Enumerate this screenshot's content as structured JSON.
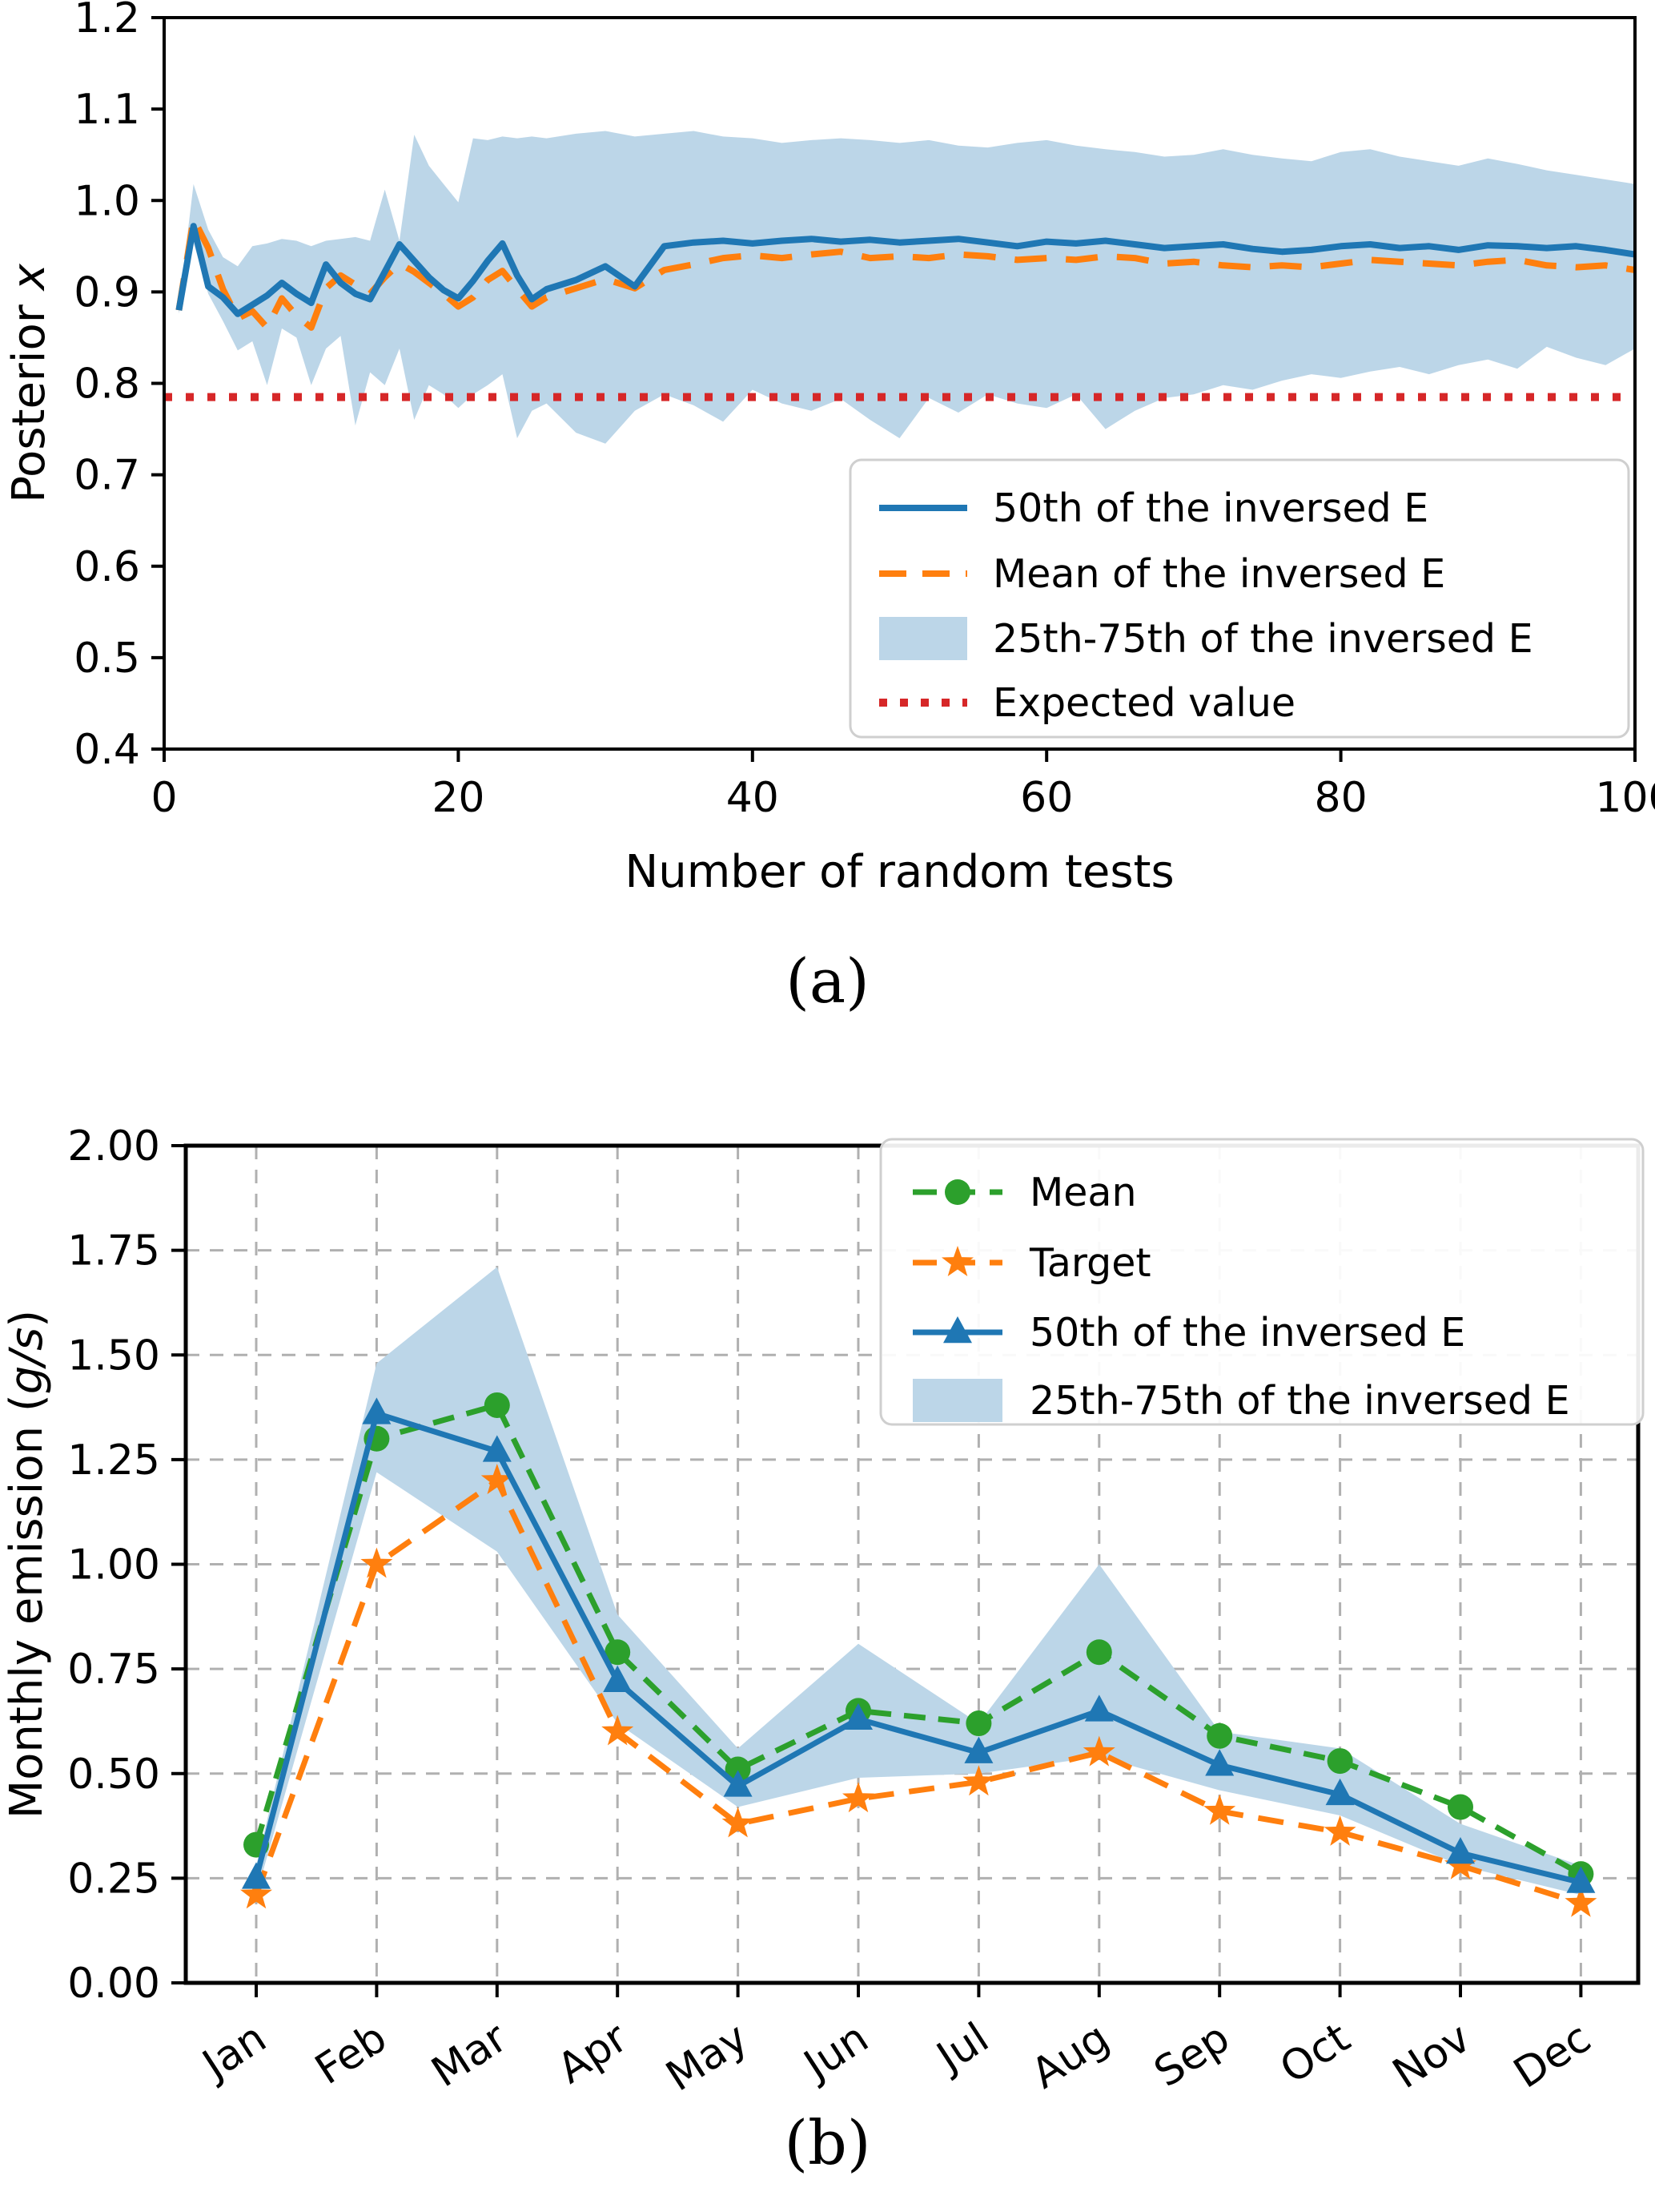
{
  "figure_a": {
    "caption": "(a)",
    "xlabel": "Number of random tests",
    "ylabel_parts": [
      {
        "text": "Posterior ",
        "italic": false
      },
      {
        "text": "x",
        "italic": true
      }
    ],
    "xlim": [
      0,
      100
    ],
    "ylim": [
      0.4,
      1.2
    ],
    "x_ticks": {
      "values": [
        0,
        20,
        40,
        60,
        80,
        100
      ],
      "labels": [
        "0",
        "20",
        "40",
        "60",
        "80",
        "100"
      ]
    },
    "y_ticks": {
      "values": [
        0.4,
        0.5,
        0.6,
        0.7,
        0.8,
        0.9,
        1.0,
        1.1,
        1.2
      ],
      "labels": [
        "0.4",
        "0.5",
        "0.6",
        "0.7",
        "0.8",
        "0.9",
        "1.0",
        "1.1",
        "1.2"
      ]
    },
    "colors": {
      "p50": "#1f77b4",
      "mean": "#ff7f0e",
      "band": "#bcd6e8",
      "expected": "#d62728"
    },
    "legend": [
      {
        "label": "50th of the inversed E",
        "swatch": "line-solid",
        "color": "p50"
      },
      {
        "label": "Mean of the inversed E",
        "swatch": "line-dashed",
        "color": "mean"
      },
      {
        "label": "25th-75th of the inversed E",
        "swatch": "patch",
        "color": "band"
      },
      {
        "label": "Expected value",
        "swatch": "line-dotted",
        "color": "expected"
      }
    ],
    "chart_data": {
      "type": "line",
      "title": "",
      "xlabel": "Number of random tests",
      "ylabel": "Posterior x",
      "xlim": [
        0,
        100
      ],
      "ylim": [
        0.4,
        1.2
      ],
      "grid": false,
      "legend_position": "lower right",
      "expected_value": 0.785,
      "x": [
        1,
        2,
        3,
        4,
        5,
        6,
        7,
        8,
        9,
        10,
        11,
        12,
        13,
        14,
        15,
        16,
        17,
        18,
        19,
        20,
        21,
        22,
        23,
        24,
        25,
        26,
        28,
        30,
        32,
        34,
        36,
        38,
        40,
        42,
        44,
        46,
        48,
        50,
        52,
        54,
        56,
        58,
        60,
        62,
        64,
        66,
        68,
        70,
        72,
        74,
        76,
        78,
        80,
        82,
        84,
        86,
        88,
        90,
        92,
        94,
        96,
        98,
        100
      ],
      "series": [
        {
          "name": "50th of the inversed E",
          "values": [
            0.88,
            0.972,
            0.906,
            0.894,
            0.876,
            0.886,
            0.896,
            0.91,
            0.898,
            0.888,
            0.93,
            0.91,
            0.898,
            0.892,
            0.922,
            0.952,
            0.934,
            0.916,
            0.902,
            0.893,
            0.912,
            0.934,
            0.953,
            0.918,
            0.892,
            0.903,
            0.913,
            0.928,
            0.906,
            0.95,
            0.954,
            0.956,
            0.953,
            0.956,
            0.958,
            0.955,
            0.957,
            0.954,
            0.956,
            0.958,
            0.954,
            0.95,
            0.955,
            0.953,
            0.956,
            0.952,
            0.948,
            0.95,
            0.952,
            0.947,
            0.944,
            0.946,
            0.95,
            0.952,
            0.948,
            0.95,
            0.946,
            0.951,
            0.95,
            0.948,
            0.95,
            0.946,
            0.941
          ]
        },
        {
          "name": "Mean of the inversed E",
          "values": [
            0.88,
            0.98,
            0.948,
            0.903,
            0.871,
            0.879,
            0.861,
            0.893,
            0.874,
            0.861,
            0.904,
            0.918,
            0.908,
            0.898,
            0.916,
            0.931,
            0.922,
            0.91,
            0.898,
            0.884,
            0.894,
            0.913,
            0.923,
            0.903,
            0.884,
            0.894,
            0.904,
            0.914,
            0.904,
            0.924,
            0.93,
            0.937,
            0.94,
            0.937,
            0.941,
            0.944,
            0.937,
            0.939,
            0.937,
            0.941,
            0.939,
            0.935,
            0.937,
            0.935,
            0.939,
            0.937,
            0.931,
            0.933,
            0.929,
            0.927,
            0.929,
            0.927,
            0.931,
            0.935,
            0.933,
            0.931,
            0.929,
            0.933,
            0.935,
            0.929,
            0.927,
            0.929,
            0.924
          ]
        },
        {
          "name": "25th percentile of the inversed E (band low)",
          "values": [
            0.876,
            0.954,
            0.898,
            0.868,
            0.836,
            0.846,
            0.798,
            0.86,
            0.85,
            0.798,
            0.838,
            0.852,
            0.754,
            0.812,
            0.798,
            0.838,
            0.76,
            0.798,
            0.788,
            0.773,
            0.788,
            0.798,
            0.81,
            0.74,
            0.77,
            0.778,
            0.746,
            0.734,
            0.77,
            0.788,
            0.776,
            0.758,
            0.793,
            0.778,
            0.77,
            0.783,
            0.76,
            0.74,
            0.784,
            0.768,
            0.788,
            0.778,
            0.773,
            0.788,
            0.75,
            0.77,
            0.784,
            0.788,
            0.798,
            0.793,
            0.803,
            0.81,
            0.806,
            0.813,
            0.818,
            0.81,
            0.82,
            0.826,
            0.816,
            0.84,
            0.828,
            0.82,
            0.838
          ]
        },
        {
          "name": "75th percentile of the inversed E (band high)",
          "values": [
            0.884,
            1.018,
            0.968,
            0.938,
            0.928,
            0.95,
            0.953,
            0.958,
            0.956,
            0.95,
            0.956,
            0.958,
            0.96,
            0.956,
            1.012,
            0.956,
            1.072,
            1.038,
            1.018,
            0.998,
            1.068,
            1.066,
            1.07,
            1.068,
            1.07,
            1.068,
            1.073,
            1.076,
            1.07,
            1.073,
            1.076,
            1.07,
            1.068,
            1.063,
            1.066,
            1.068,
            1.066,
            1.063,
            1.066,
            1.06,
            1.058,
            1.063,
            1.066,
            1.06,
            1.056,
            1.053,
            1.048,
            1.05,
            1.056,
            1.05,
            1.046,
            1.043,
            1.053,
            1.056,
            1.048,
            1.043,
            1.038,
            1.046,
            1.04,
            1.033,
            1.028,
            1.023,
            1.018
          ]
        }
      ]
    }
  },
  "figure_b": {
    "caption": "(b)",
    "ylabel_parts": [
      {
        "text": "Monthly emission (",
        "italic": false
      },
      {
        "text": "g/s",
        "italic": true
      },
      {
        "text": ")",
        "italic": false
      }
    ],
    "ylim": [
      0,
      2
    ],
    "y_ticks": {
      "values": [
        0.0,
        0.25,
        0.5,
        0.75,
        1.0,
        1.25,
        1.5,
        1.75,
        2.0
      ],
      "labels": [
        "0.00",
        "0.25",
        "0.50",
        "0.75",
        "1.00",
        "1.25",
        "1.50",
        "1.75",
        "2.00"
      ]
    },
    "colors": {
      "mean": "#2ca02c",
      "target": "#ff7f0e",
      "p50": "#1f77b4",
      "band": "#bcd6e8",
      "grid": "#b0b0b0"
    },
    "legend": [
      {
        "label": "Mean",
        "swatch": "line-dashed-marker",
        "marker": "circle",
        "color": "mean"
      },
      {
        "label": "Target",
        "swatch": "line-dashed-marker",
        "marker": "star",
        "color": "target"
      },
      {
        "label": "50th of the inversed E",
        "swatch": "line-solid-marker",
        "marker": "triangle",
        "color": "p50"
      },
      {
        "label": "25th-75th of the inversed E",
        "swatch": "patch",
        "color": "band"
      }
    ],
    "chart_data": {
      "type": "line",
      "title": "",
      "xlabel": "",
      "ylabel": "Monthly emission (g/s)",
      "ylim": [
        0,
        2
      ],
      "grid": true,
      "legend_position": "upper right",
      "categories": [
        "Jan",
        "Feb",
        "Mar",
        "Apr",
        "May",
        "Jun",
        "Jul",
        "Aug",
        "Sep",
        "Oct",
        "Nov",
        "Dec"
      ],
      "series": [
        {
          "name": "Mean",
          "marker": "circle",
          "values": [
            0.33,
            1.3,
            1.38,
            0.79,
            0.51,
            0.65,
            0.62,
            0.79,
            0.59,
            0.53,
            0.42,
            0.26
          ]
        },
        {
          "name": "Target",
          "marker": "star",
          "values": [
            0.21,
            1.0,
            1.2,
            0.6,
            0.38,
            0.44,
            0.48,
            0.55,
            0.41,
            0.36,
            0.28,
            0.19
          ]
        },
        {
          "name": "50th of the inversed E",
          "marker": "triangle",
          "values": [
            0.25,
            1.36,
            1.27,
            0.72,
            0.47,
            0.63,
            0.55,
            0.65,
            0.52,
            0.45,
            0.31,
            0.24
          ]
        },
        {
          "name": "25th percentile of the inversed E (band low)",
          "values": [
            0.21,
            1.22,
            1.03,
            0.62,
            0.42,
            0.49,
            0.5,
            0.54,
            0.46,
            0.4,
            0.28,
            0.21
          ]
        },
        {
          "name": "75th percentile of the inversed E (band high)",
          "values": [
            0.28,
            1.48,
            1.71,
            0.88,
            0.56,
            0.81,
            0.62,
            1.0,
            0.6,
            0.56,
            0.38,
            0.28
          ]
        }
      ]
    }
  }
}
